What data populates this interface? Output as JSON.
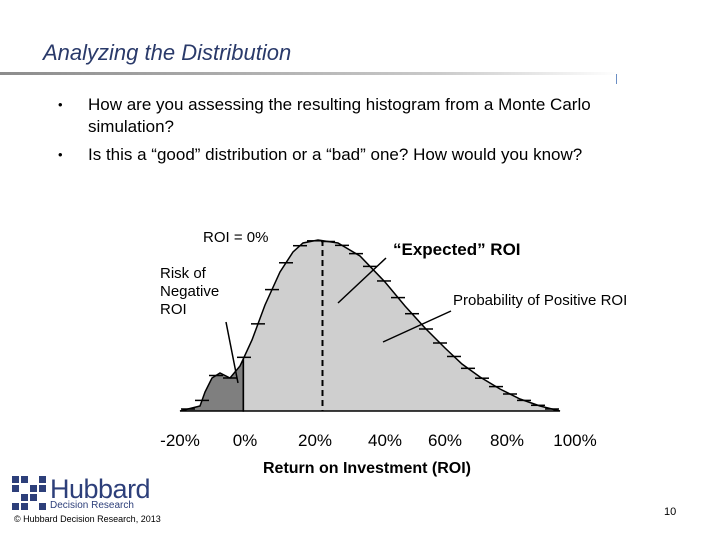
{
  "slide": {
    "title": "Analyzing the Distribution",
    "bullets": [
      "How are you assessing the resulting histogram from a Monte Carlo simulation?",
      "Is this a “good” distribution or a “bad” one?  How would you know?"
    ],
    "bullet_glyph": "•",
    "page_number": "10",
    "copyright": "© Hubbard Decision Research, 2013",
    "logo": {
      "name": "Hubbard",
      "subtitle": "Decision Research"
    }
  },
  "annotations": {
    "roi_zero": "ROI = 0%",
    "expected_roi": "“Expected” ROI",
    "risk_label": "Risk of\nNegative\nROI",
    "positive_prob": "Probability of Positive ROI"
  },
  "chart_data": {
    "type": "area",
    "title": "",
    "xlabel": "Return on Investment (ROI)",
    "ylabel": "",
    "x_tick_labels": [
      "-20%",
      "0%",
      "20%",
      "40%",
      "60%",
      "80%",
      "100%"
    ],
    "x_tick_values": [
      -20,
      0,
      20,
      40,
      60,
      80,
      100
    ],
    "xlim": [
      -20,
      100
    ],
    "regions": [
      {
        "name": "negative",
        "x_range": [
          -20,
          0
        ],
        "color": "#7f7f7f"
      },
      {
        "name": "positive",
        "x_range": [
          0,
          100
        ],
        "color": "#cfcfcf"
      }
    ],
    "markers": [
      {
        "label": "roi_zero",
        "x": 0,
        "style": "solid"
      },
      {
        "label": "expected_roi",
        "x": 25,
        "style": "dashed"
      }
    ],
    "grid": false,
    "legend": "none"
  }
}
